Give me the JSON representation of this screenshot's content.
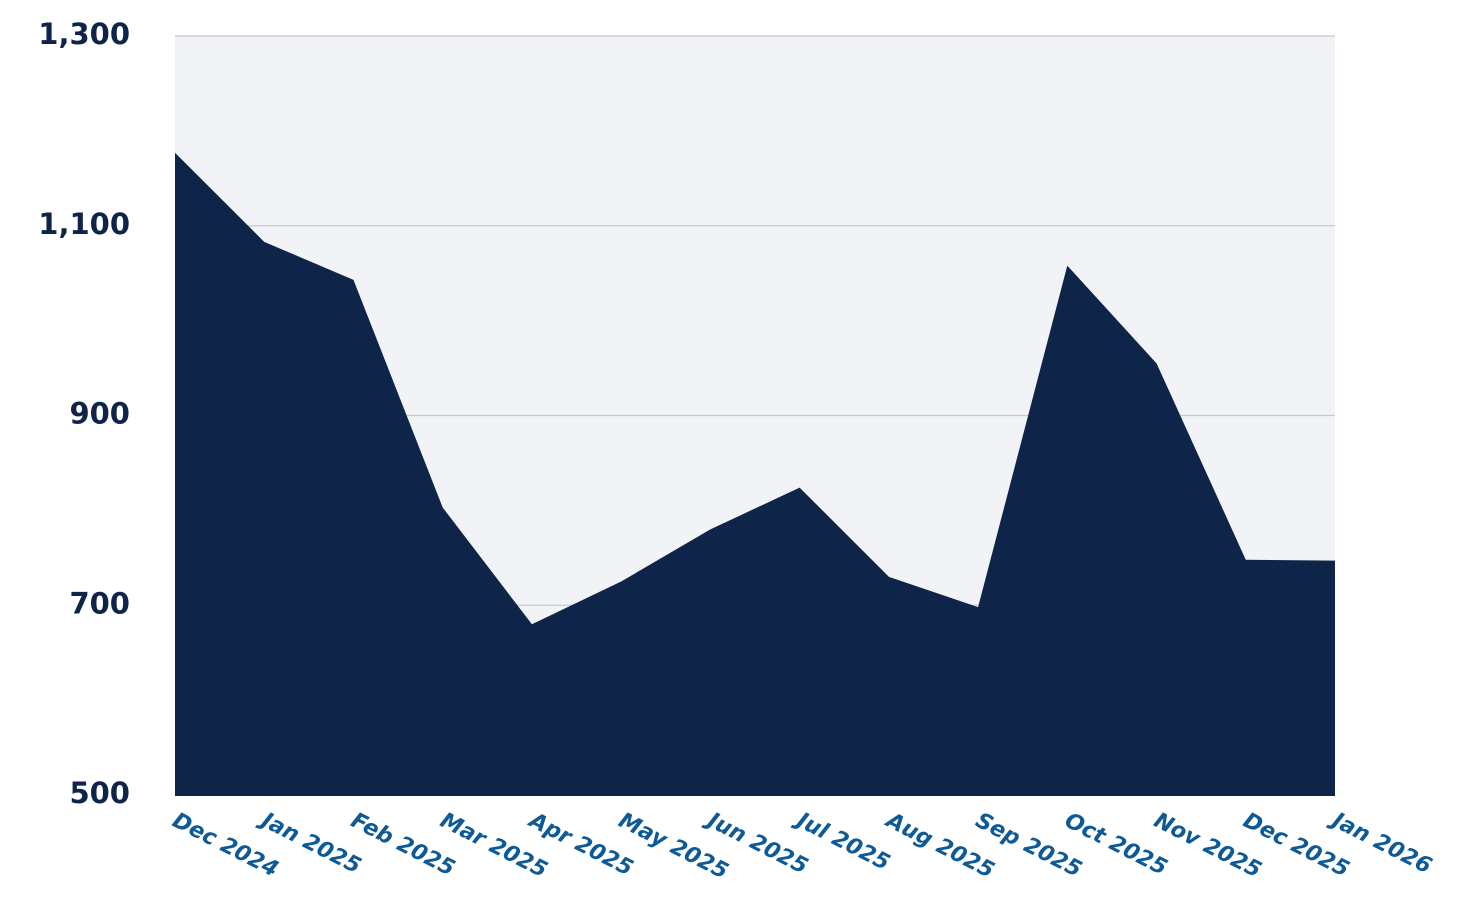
{
  "chart_data": {
    "type": "area",
    "categories": [
      "Dec 2024",
      "Jan 2025",
      "Feb 2025",
      "Mar 2025",
      "Apr 2025",
      "May 2025",
      "Jun 2025",
      "Jul 2025",
      "Aug 2025",
      "Sep 2025",
      "Oct 2025",
      "Nov 2025",
      "Dec 2025",
      "Jan 2026"
    ],
    "values": [
      1177,
      1083,
      1043,
      803,
      680,
      725,
      780,
      824,
      730,
      698,
      1058,
      955,
      748,
      747
    ],
    "color": "#0f2449",
    "ylim": [
      500,
      1300
    ],
    "yticks": [
      500,
      700,
      900,
      {
        "value": 1100,
        "label": "1,100"
      },
      {
        "value": 1300,
        "label": "1,300"
      }
    ],
    "grid": true
  }
}
